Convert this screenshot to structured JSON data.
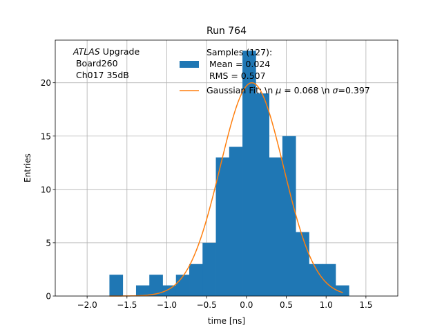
{
  "chart_data": {
    "type": "bar",
    "title": "Run 764",
    "xlabel": "time [ns]",
    "ylabel": "Entries",
    "xlim": [
      -2.4,
      1.9
    ],
    "ylim": [
      0,
      24
    ],
    "grid": true,
    "xticks": [
      -2.0,
      -1.5,
      -1.0,
      -0.5,
      0.0,
      0.5,
      1.0,
      1.5
    ],
    "xtick_labels": [
      "−2.0",
      "−1.5",
      "−1.0",
      "−0.5",
      "0.0",
      "0.5",
      "1.0",
      "1.5"
    ],
    "yticks": [
      0,
      5,
      10,
      15,
      20
    ],
    "ytick_labels": [
      "0",
      "5",
      "10",
      "15",
      "20"
    ],
    "bins": {
      "start": -1.72,
      "width": 0.167,
      "counts": [
        2,
        0,
        1,
        2,
        1,
        2,
        3,
        5,
        13,
        14,
        23,
        19,
        13,
        15,
        6,
        3,
        3,
        1
      ]
    },
    "fit": {
      "type": "gaussian",
      "amplitude": 20,
      "mu": 0.068,
      "sigma": 0.397,
      "range": [
        -1.72,
        1.21
      ]
    },
    "annotation": {
      "italic": "ATLAS",
      "line1_rest": " Upgrade",
      "line2": " Board260",
      "line3": " Ch017 35dB"
    },
    "legend": {
      "position": "top",
      "hist": {
        "line1": "Samples (127):",
        "line2": " Mean = 0.024",
        "line3": " RMS = 0.507",
        "color": "#1f77b4"
      },
      "fit": {
        "pre": "Gaussian Fit: \\n ",
        "mu_sym": "μ",
        "mid": " = 0.068 \\n ",
        "sigma_sym": "σ",
        "post": "=0.397",
        "color": "#ff7f0e"
      }
    }
  }
}
